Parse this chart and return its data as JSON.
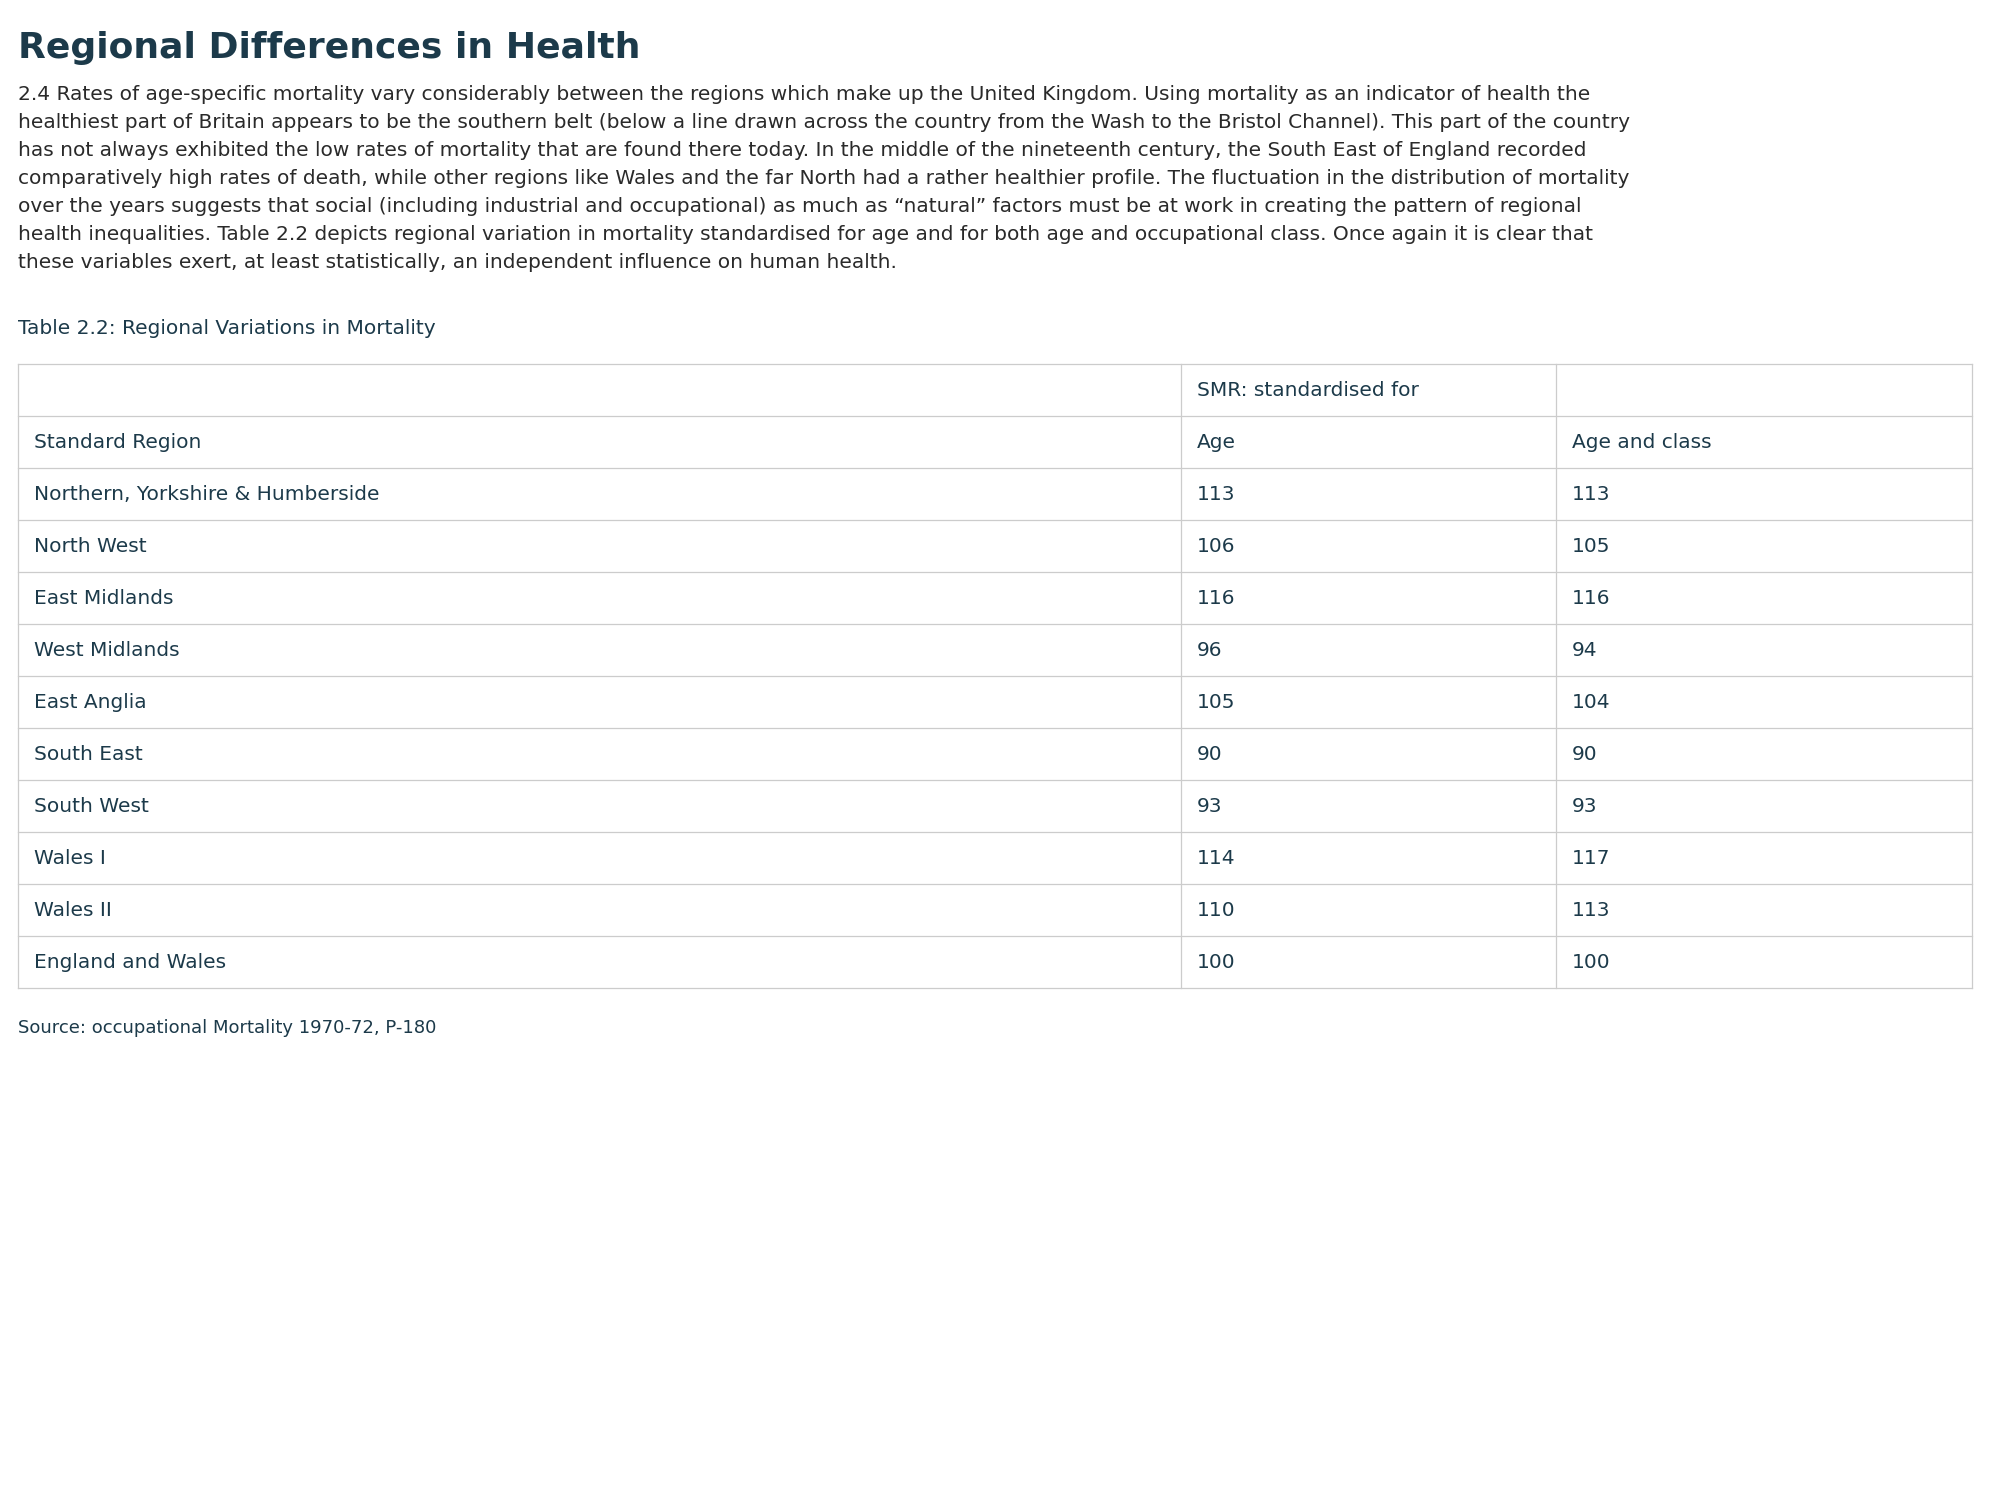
{
  "title": "Regional Differences in Health",
  "title_color": "#1a3a4a",
  "body_text_lines": [
    "2.4 Rates of age-specific mortality vary considerably between the regions which make up the United Kingdom. Using mortality as an indicator of health the",
    "healthiest part of Britain appears to be the southern belt (below a line drawn across the country from the Wash to the Bristol Channel). This part of the country",
    "has not always exhibited the low rates of mortality that are found there today. In the middle of the nineteenth century, the South East of England recorded",
    "comparatively high rates of death, while other regions like Wales and the far North had a rather healthier profile. The fluctuation in the distribution of mortality",
    "over the years suggests that social (including industrial and occupational) as much as “natural” factors must be at work in creating the pattern of regional",
    "health inequalities. Table 2.2 depicts regional variation in mortality standardised for age and for both age and occupational class. Once again it is clear that",
    "these variables exert, at least statistically, an independent influence on human health."
  ],
  "table_title": "Table 2.2: Regional Variations in Mortality",
  "smr_header": "SMR: standardised for",
  "col_headers": [
    "Standard Region",
    "Age",
    "Age and class"
  ],
  "rows": [
    [
      "Northern, Yorkshire & Humberside",
      "113",
      "113"
    ],
    [
      "North West",
      "106",
      "105"
    ],
    [
      "East Midlands",
      "116",
      "116"
    ],
    [
      "West Midlands",
      "96",
      "94"
    ],
    [
      "East Anglia",
      "105",
      "104"
    ],
    [
      "South East",
      "90",
      "90"
    ],
    [
      "South West",
      "93",
      "93"
    ],
    [
      "Wales I",
      "114",
      "117"
    ],
    [
      "Wales II",
      "110",
      "113"
    ],
    [
      "England and Wales",
      "100",
      "100"
    ]
  ],
  "source_text": "Source: occupational Mortality 1970-72, P-180",
  "bg_color": "#ffffff",
  "title_color_hex": "#1c3a4a",
  "text_color": "#1c3a4a",
  "body_text_color": "#2a2a2a",
  "table_border_color": "#cccccc",
  "title_fontsize": 26,
  "body_fontsize": 14.5,
  "table_title_fontsize": 14.5,
  "table_fontsize": 14.5,
  "source_fontsize": 13
}
